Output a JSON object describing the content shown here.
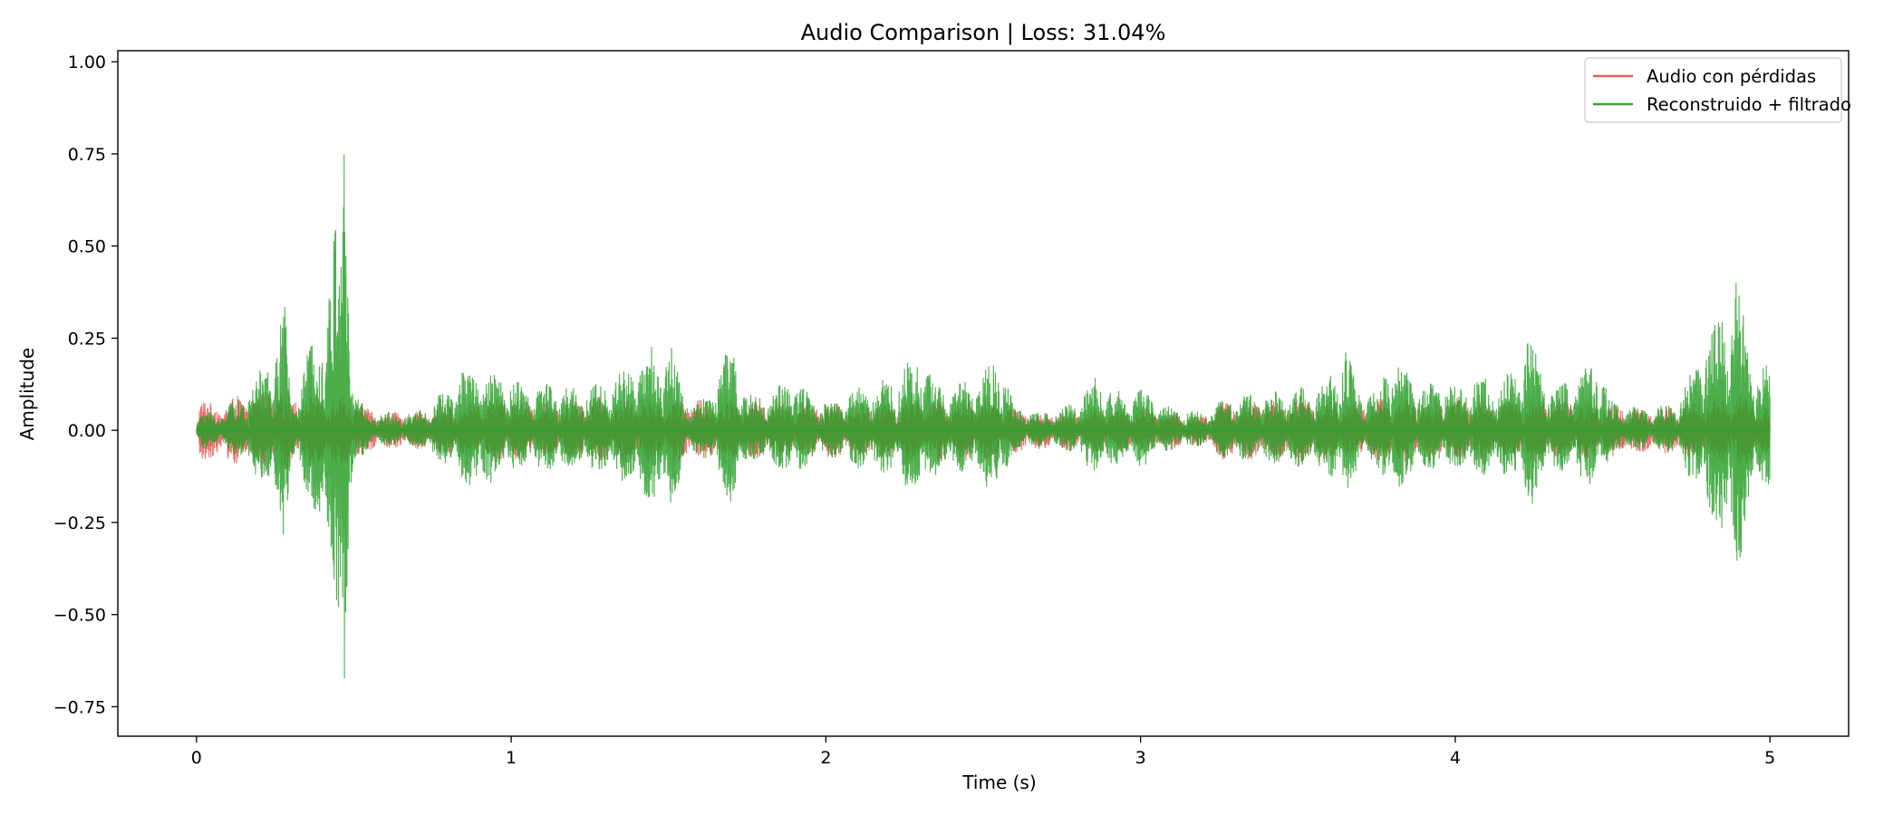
{
  "chart_data": {
    "type": "line",
    "title": "Audio Comparison | Loss: 31.04%",
    "xlabel": "Time (s)",
    "ylabel": "Amplitude",
    "xlim": [
      -0.25,
      5.25
    ],
    "ylim": [
      -0.83,
      1.03
    ],
    "x_ticks": [
      0,
      1,
      2,
      3,
      4,
      5
    ],
    "x_tick_labels": [
      "0",
      "1",
      "2",
      "3",
      "4",
      "5"
    ],
    "y_ticks": [
      1.0,
      0.75,
      0.5,
      0.25,
      0.0,
      -0.25,
      -0.5,
      -0.75
    ],
    "y_tick_labels": [
      "1.00",
      "0.75",
      "0.50",
      "0.25",
      "0.00",
      "−0.25",
      "−0.50",
      "−0.75"
    ],
    "grid": false,
    "legend_position": "top-right",
    "duration_s": 5.0,
    "series": [
      {
        "name": "Audio con pérdidas",
        "color": "#e83f3f",
        "opacity": 0.75,
        "envelope": [
          [
            0.0,
            0.02
          ],
          [
            0.01,
            0.1
          ],
          [
            0.05,
            0.07
          ],
          [
            0.1,
            0.09
          ],
          [
            0.2,
            0.1
          ],
          [
            0.25,
            0.12
          ],
          [
            0.3,
            0.1
          ],
          [
            0.35,
            0.09
          ],
          [
            0.4,
            0.1
          ],
          [
            0.47,
            0.1
          ],
          [
            0.5,
            0.09
          ],
          [
            0.55,
            0.06
          ],
          [
            0.6,
            0.05
          ],
          [
            0.7,
            0.05
          ],
          [
            0.8,
            0.07
          ],
          [
            0.9,
            0.08
          ],
          [
            1.0,
            0.09
          ],
          [
            1.1,
            0.08
          ],
          [
            1.2,
            0.08
          ],
          [
            1.27,
            0.1
          ],
          [
            1.3,
            0.08
          ],
          [
            1.4,
            0.09
          ],
          [
            1.5,
            0.08
          ],
          [
            1.6,
            0.09
          ],
          [
            1.7,
            0.08
          ],
          [
            1.8,
            0.08
          ],
          [
            1.9,
            0.07
          ],
          [
            2.0,
            0.08
          ],
          [
            2.1,
            0.07
          ],
          [
            2.2,
            0.08
          ],
          [
            2.3,
            0.09
          ],
          [
            2.4,
            0.08
          ],
          [
            2.5,
            0.09
          ],
          [
            2.6,
            0.06
          ],
          [
            2.7,
            0.05
          ],
          [
            2.8,
            0.06
          ],
          [
            2.9,
            0.06
          ],
          [
            3.0,
            0.06
          ],
          [
            3.1,
            0.05
          ],
          [
            3.2,
            0.04
          ],
          [
            3.26,
            0.08
          ],
          [
            3.3,
            0.08
          ],
          [
            3.4,
            0.08
          ],
          [
            3.5,
            0.09
          ],
          [
            3.6,
            0.08
          ],
          [
            3.7,
            0.08
          ],
          [
            3.8,
            0.09
          ],
          [
            3.9,
            0.08
          ],
          [
            4.0,
            0.09
          ],
          [
            4.1,
            0.08
          ],
          [
            4.2,
            0.08
          ],
          [
            4.3,
            0.09
          ],
          [
            4.4,
            0.08
          ],
          [
            4.5,
            0.07
          ],
          [
            4.6,
            0.06
          ],
          [
            4.7,
            0.07
          ],
          [
            4.8,
            0.09
          ],
          [
            4.9,
            0.1
          ],
          [
            5.0,
            0.06
          ]
        ]
      },
      {
        "name": "Reconstruido + filtrado",
        "color": "#2ca02c",
        "opacity": 0.85,
        "envelope": [
          [
            0.0,
            0.02
          ],
          [
            0.02,
            0.06
          ],
          [
            0.06,
            0.05
          ],
          [
            0.1,
            0.07
          ],
          [
            0.15,
            0.1
          ],
          [
            0.2,
            0.16
          ],
          [
            0.25,
            0.25
          ],
          [
            0.28,
            0.35
          ],
          [
            0.3,
            0.1
          ],
          [
            0.33,
            0.16
          ],
          [
            0.38,
            0.28
          ],
          [
            0.42,
            0.45
          ],
          [
            0.46,
            0.68
          ],
          [
            0.47,
            0.95
          ],
          [
            0.5,
            0.12
          ],
          [
            0.55,
            0.05
          ],
          [
            0.6,
            0.05
          ],
          [
            0.7,
            0.05
          ],
          [
            0.8,
            0.12
          ],
          [
            0.85,
            0.18
          ],
          [
            0.9,
            0.2
          ],
          [
            0.95,
            0.16
          ],
          [
            1.0,
            0.14
          ],
          [
            1.05,
            0.12
          ],
          [
            1.1,
            0.14
          ],
          [
            1.2,
            0.12
          ],
          [
            1.3,
            0.14
          ],
          [
            1.38,
            0.18
          ],
          [
            1.45,
            0.24
          ],
          [
            1.52,
            0.25
          ],
          [
            1.55,
            0.08
          ],
          [
            1.6,
            0.08
          ],
          [
            1.65,
            0.15
          ],
          [
            1.7,
            0.25
          ],
          [
            1.75,
            0.1
          ],
          [
            1.8,
            0.1
          ],
          [
            1.85,
            0.12
          ],
          [
            1.9,
            0.16
          ],
          [
            1.95,
            0.1
          ],
          [
            2.0,
            0.08
          ],
          [
            2.05,
            0.1
          ],
          [
            2.1,
            0.12
          ],
          [
            2.2,
            0.14
          ],
          [
            2.25,
            0.18
          ],
          [
            2.3,
            0.22
          ],
          [
            2.35,
            0.15
          ],
          [
            2.4,
            0.12
          ],
          [
            2.45,
            0.14
          ],
          [
            2.5,
            0.18
          ],
          [
            2.55,
            0.21
          ],
          [
            2.6,
            0.06
          ],
          [
            2.7,
            0.05
          ],
          [
            2.8,
            0.08
          ],
          [
            2.85,
            0.15
          ],
          [
            2.9,
            0.12
          ],
          [
            2.95,
            0.1
          ],
          [
            3.0,
            0.12
          ],
          [
            3.1,
            0.06
          ],
          [
            3.2,
            0.05
          ],
          [
            3.25,
            0.08
          ],
          [
            3.3,
            0.1
          ],
          [
            3.4,
            0.1
          ],
          [
            3.5,
            0.12
          ],
          [
            3.55,
            0.12
          ],
          [
            3.6,
            0.15
          ],
          [
            3.65,
            0.24
          ],
          [
            3.7,
            0.1
          ],
          [
            3.75,
            0.12
          ],
          [
            3.8,
            0.22
          ],
          [
            3.85,
            0.16
          ],
          [
            3.9,
            0.12
          ],
          [
            3.95,
            0.14
          ],
          [
            4.0,
            0.12
          ],
          [
            4.05,
            0.14
          ],
          [
            4.1,
            0.16
          ],
          [
            4.15,
            0.14
          ],
          [
            4.2,
            0.18
          ],
          [
            4.23,
            0.27
          ],
          [
            4.3,
            0.12
          ],
          [
            4.35,
            0.14
          ],
          [
            4.4,
            0.16
          ],
          [
            4.45,
            0.2
          ],
          [
            4.5,
            0.08
          ],
          [
            4.55,
            0.07
          ],
          [
            4.6,
            0.06
          ],
          [
            4.7,
            0.08
          ],
          [
            4.75,
            0.16
          ],
          [
            4.8,
            0.28
          ],
          [
            4.85,
            0.35
          ],
          [
            4.9,
            0.47
          ],
          [
            4.95,
            0.18
          ],
          [
            5.0,
            0.18
          ]
        ]
      }
    ]
  }
}
